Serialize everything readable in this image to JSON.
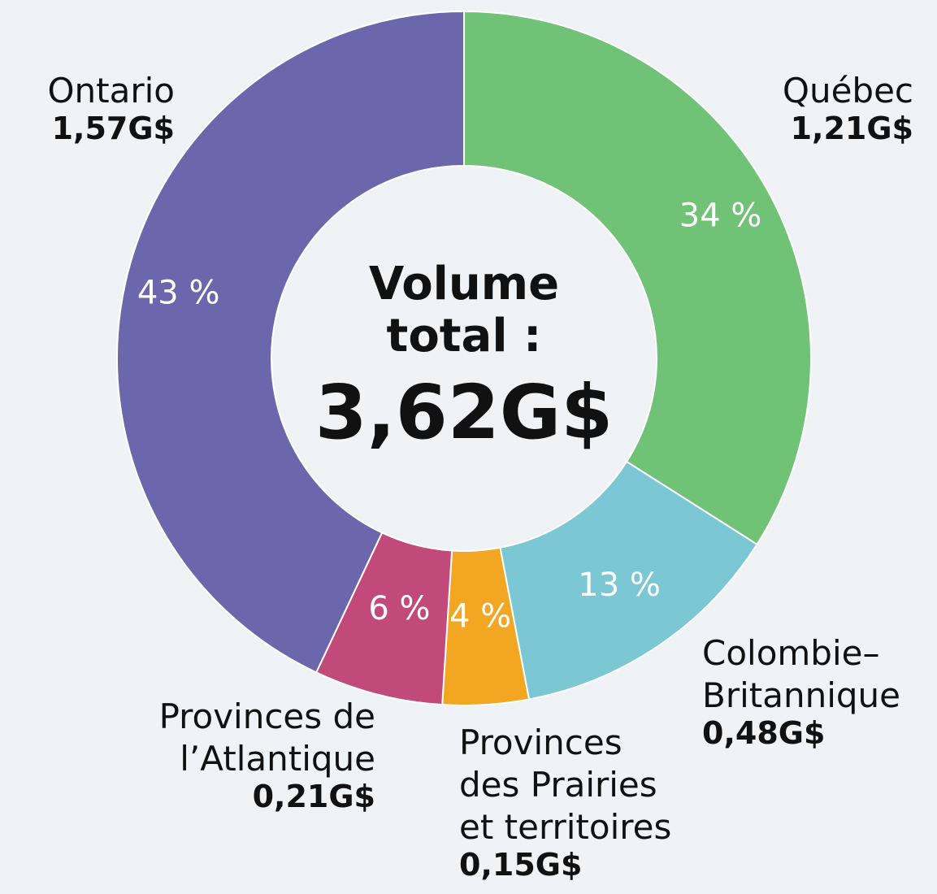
{
  "chart_data": {
    "type": "donut",
    "center_title": "Volume\ntotal :",
    "center_value": "3,62G$",
    "categories": [
      "Québec",
      "Colombie–\nBritannique",
      "Provinces\ndes Prairies\net territoires",
      "Provinces de\nl’Atlantique",
      "Ontario"
    ],
    "values": [
      34,
      13,
      4,
      6,
      43
    ],
    "value_labels": [
      "34 %",
      "13 %",
      "4 %",
      "6 %",
      "43 %"
    ],
    "amount_labels": [
      "1,21G$",
      "0,48G$",
      "0,15G$",
      "0,21G$",
      "1,57G$"
    ],
    "colors": [
      "#6fc276",
      "#7cc7d4",
      "#f2a622",
      "#c24a7a",
      "#6c66ad"
    ]
  }
}
